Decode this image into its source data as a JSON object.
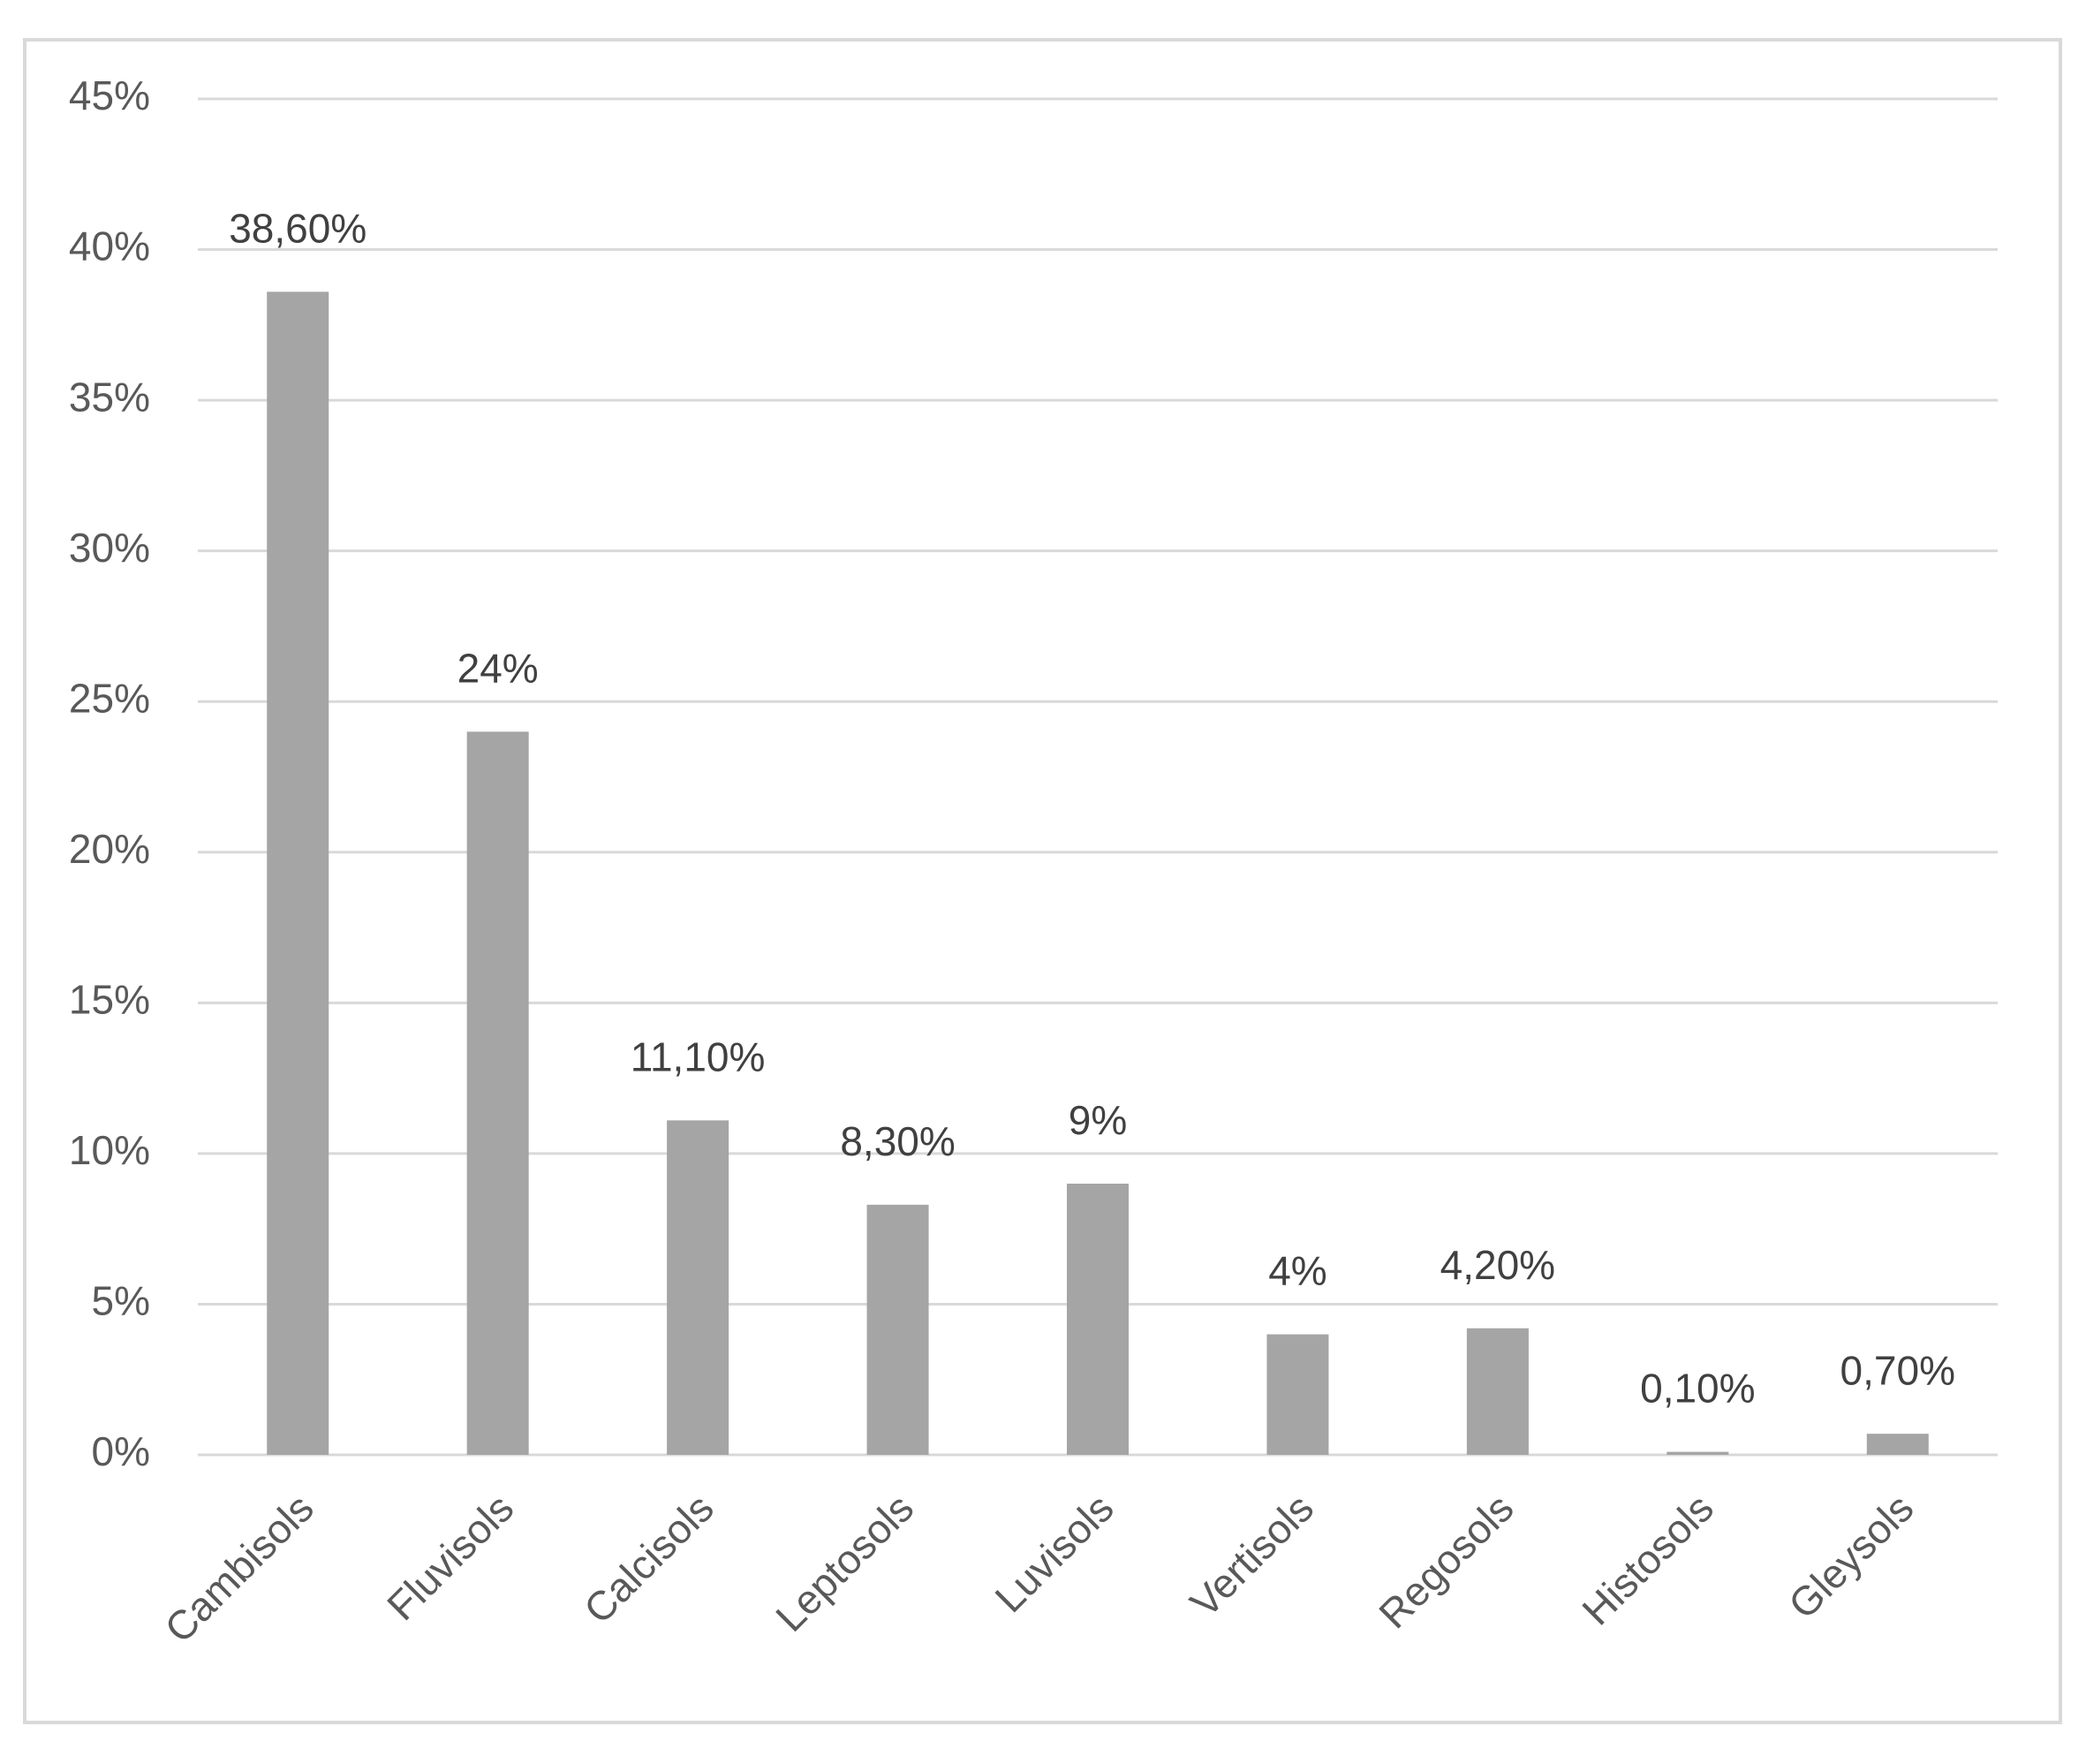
{
  "chart_data": {
    "type": "bar",
    "categories": [
      "Cambisols",
      "Fluvisols",
      "Calcisols",
      "Leptosols",
      "Luvisols",
      "Vertisols",
      "Regosols",
      "Histosols",
      "Gleysols"
    ],
    "values": [
      38.6,
      24,
      11.1,
      8.3,
      9,
      4,
      4.2,
      0.1,
      0.7
    ],
    "value_labels": [
      "38,60%",
      "24%",
      "11,10%",
      "8,30%",
      "9%",
      "4%",
      "4,20%",
      "0,10%",
      "0,70%"
    ],
    "color": "#a5a5a5",
    "ylim": [
      0,
      45
    ],
    "yticks": [
      {
        "value": 0,
        "label": "0%"
      },
      {
        "value": 5,
        "label": "5%"
      },
      {
        "value": 10,
        "label": "10%"
      },
      {
        "value": 15,
        "label": "15%"
      },
      {
        "value": 20,
        "label": "20%"
      },
      {
        "value": 25,
        "label": "25%"
      },
      {
        "value": 30,
        "label": "30%"
      },
      {
        "value": 35,
        "label": "35%"
      },
      {
        "value": 40,
        "label": "40%"
      },
      {
        "value": 45,
        "label": "45%"
      }
    ],
    "grid": true
  }
}
